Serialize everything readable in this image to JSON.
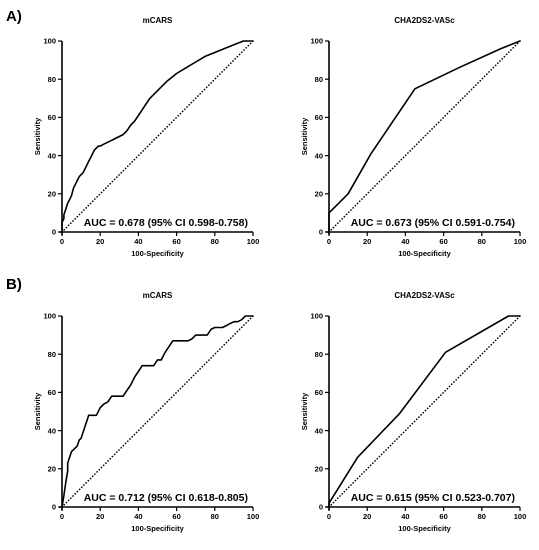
{
  "figure": {
    "panel_labels": [
      "A)",
      "B)"
    ]
  },
  "chart_data": [
    {
      "type": "line",
      "panel": "A)",
      "title": "mCARS",
      "xlabel": "100-Specificity",
      "ylabel": "Sensitivity",
      "xlim": [
        0,
        100
      ],
      "ylim": [
        0,
        100
      ],
      "xticks": [
        0,
        20,
        40,
        60,
        80,
        100
      ],
      "yticks": [
        0,
        20,
        40,
        60,
        80,
        100
      ],
      "annotation": "AUC = 0.678 (95% CI 0.598-0.758)",
      "grid": false,
      "series": [
        {
          "style": "solid",
          "x": [
            0,
            0,
            1,
            1,
            2,
            3,
            4,
            5,
            6,
            7,
            8,
            9,
            10,
            11,
            12,
            13,
            14,
            15,
            16,
            17,
            18,
            19,
            20,
            22,
            24,
            26,
            28,
            30,
            32,
            34,
            36,
            38,
            40,
            42,
            44,
            46,
            50,
            55,
            60,
            65,
            70,
            75,
            80,
            85,
            90,
            95,
            100
          ],
          "y": [
            0,
            5,
            7,
            9,
            12,
            15,
            17,
            19,
            23,
            25,
            27,
            29,
            30,
            31,
            33,
            35,
            37,
            39,
            41,
            43,
            44,
            45,
            45,
            46,
            47,
            48,
            49,
            50,
            51,
            53,
            56,
            58,
            61,
            64,
            67,
            70,
            74,
            79,
            83,
            86,
            89,
            92,
            94,
            96,
            98,
            100,
            100
          ]
        },
        {
          "style": "dotted",
          "x": [
            0,
            100
          ],
          "y": [
            0,
            100
          ]
        }
      ]
    },
    {
      "type": "line",
      "panel": "A)",
      "title": "CHA2DS2-VASc",
      "xlabel": "100-Specificity",
      "ylabel": "Sensitivity",
      "xlim": [
        0,
        100
      ],
      "ylim": [
        0,
        100
      ],
      "xticks": [
        0,
        20,
        40,
        60,
        80,
        100
      ],
      "yticks": [
        0,
        20,
        40,
        60,
        80,
        100
      ],
      "annotation": "AUC = 0.673 (95% CI 0.591-0.754)",
      "grid": false,
      "series": [
        {
          "style": "solid",
          "x": [
            0,
            0,
            10,
            22,
            45,
            68,
            90,
            100
          ],
          "y": [
            0,
            10,
            20,
            41,
            75,
            86,
            96,
            100
          ]
        },
        {
          "style": "dotted",
          "x": [
            0,
            100
          ],
          "y": [
            0,
            100
          ]
        }
      ]
    },
    {
      "type": "line",
      "panel": "B)",
      "title": "mCARS",
      "xlabel": "100-Specificity",
      "ylabel": "Sensitivity",
      "xlim": [
        0,
        100
      ],
      "ylim": [
        0,
        100
      ],
      "xticks": [
        0,
        20,
        40,
        60,
        80,
        100
      ],
      "yticks": [
        0,
        20,
        40,
        60,
        80,
        100
      ],
      "annotation": "AUC = 0.712 (95% CI 0.618-0.805)",
      "grid": false,
      "series": [
        {
          "style": "solid",
          "x": [
            0,
            1,
            2,
            3,
            3,
            4,
            5,
            6,
            8,
            9,
            10,
            11,
            12,
            13,
            14,
            16,
            18,
            20,
            22,
            24,
            26,
            28,
            30,
            32,
            34,
            36,
            38,
            40,
            42,
            44,
            46,
            48,
            50,
            52,
            54,
            56,
            58,
            60,
            62,
            64,
            66,
            68,
            70,
            72,
            74,
            76,
            78,
            80,
            82,
            84,
            86,
            88,
            90,
            92,
            94,
            96,
            98,
            100
          ],
          "y": [
            0,
            6,
            13,
            19,
            23,
            26,
            29,
            30,
            32,
            35,
            36,
            39,
            42,
            45,
            48,
            48,
            48,
            52,
            54,
            55,
            58,
            58,
            58,
            58,
            61,
            64,
            68,
            71,
            74,
            74,
            74,
            74,
            77,
            77,
            81,
            84,
            87,
            87,
            87,
            87,
            87,
            88,
            90,
            90,
            90,
            90,
            93,
            94,
            94,
            94,
            95,
            96,
            97,
            97,
            98,
            100,
            100,
            100
          ]
        },
        {
          "style": "dotted",
          "x": [
            0,
            100
          ],
          "y": [
            0,
            100
          ]
        }
      ]
    },
    {
      "type": "line",
      "panel": "B)",
      "title": "CHA2DS2-VASc",
      "xlabel": "100-Specificity",
      "ylabel": "Sensitivity",
      "xlim": [
        0,
        100
      ],
      "ylim": [
        0,
        100
      ],
      "xticks": [
        0,
        20,
        40,
        60,
        80,
        100
      ],
      "yticks": [
        0,
        20,
        40,
        60,
        80,
        100
      ],
      "annotation": "AUC = 0.615 (95% CI 0.523-0.707)",
      "grid": false,
      "series": [
        {
          "style": "solid",
          "x": [
            0,
            0,
            15,
            37,
            61,
            94,
            100
          ],
          "y": [
            0,
            2,
            26,
            49,
            81,
            100,
            100
          ]
        },
        {
          "style": "dotted",
          "x": [
            0,
            100
          ],
          "y": [
            0,
            100
          ]
        }
      ]
    }
  ]
}
